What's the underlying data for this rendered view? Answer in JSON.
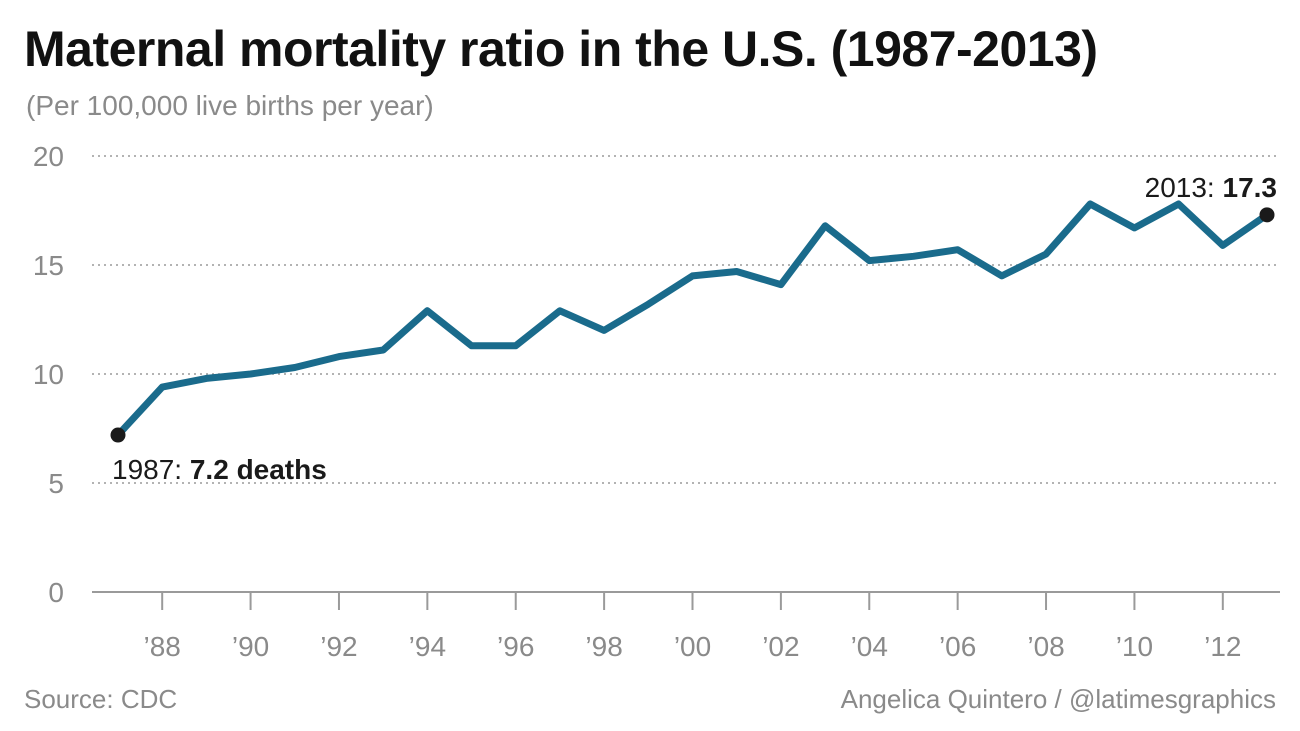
{
  "header": {
    "title": "Maternal mortality ratio in the U.S. (1987-2013)",
    "subtitle": "(Per 100,000 live births per year)"
  },
  "footer": {
    "source": "Source: CDC",
    "credit": "Angelica Quintero / @latimesgraphics"
  },
  "colors": {
    "line": "#1a6b8c",
    "endpoint": "#1a1a1a",
    "grid": "#9a9a9a",
    "axis": "#9a9a9a",
    "tick_text": "#8a8a8a"
  },
  "chart_data": {
    "type": "line",
    "title": "Maternal mortality ratio in the U.S. (1987-2013)",
    "subtitle": "(Per 100,000 live births per year)",
    "xlabel": "",
    "ylabel": "",
    "xlim": [
      1987,
      2013
    ],
    "ylim": [
      0,
      20
    ],
    "y_ticks": [
      0,
      5,
      10,
      15,
      20
    ],
    "x_ticks": [
      {
        "year": 1988,
        "label": "’88"
      },
      {
        "year": 1990,
        "label": "’90"
      },
      {
        "year": 1992,
        "label": "’92"
      },
      {
        "year": 1994,
        "label": "’94"
      },
      {
        "year": 1996,
        "label": "’96"
      },
      {
        "year": 1998,
        "label": "’98"
      },
      {
        "year": 2000,
        "label": "’00"
      },
      {
        "year": 2002,
        "label": "’02"
      },
      {
        "year": 2004,
        "label": "’04"
      },
      {
        "year": 2006,
        "label": "’06"
      },
      {
        "year": 2008,
        "label": "’08"
      },
      {
        "year": 2010,
        "label": "’10"
      },
      {
        "year": 2012,
        "label": "’12"
      }
    ],
    "grid": "horizontal dotted",
    "x": [
      1987,
      1988,
      1989,
      1990,
      1991,
      1992,
      1993,
      1994,
      1995,
      1996,
      1997,
      1998,
      1999,
      2000,
      2001,
      2002,
      2003,
      2004,
      2005,
      2006,
      2007,
      2008,
      2009,
      2010,
      2011,
      2012,
      2013
    ],
    "values": [
      7.2,
      9.4,
      9.8,
      10.0,
      10.3,
      10.8,
      11.1,
      12.9,
      11.3,
      11.3,
      12.9,
      12.0,
      13.2,
      14.5,
      14.7,
      14.1,
      16.8,
      15.2,
      15.4,
      15.7,
      14.5,
      15.5,
      17.8,
      16.7,
      17.8,
      15.9,
      17.3
    ],
    "annotations": [
      {
        "year": 1987,
        "value": 7.2,
        "label_regular": "1987: ",
        "label_bold": "7.2 deaths",
        "placement": "below-right"
      },
      {
        "year": 2013,
        "value": 17.3,
        "label_regular": "2013: ",
        "label_bold": "17.3",
        "placement": "above-left"
      }
    ]
  }
}
